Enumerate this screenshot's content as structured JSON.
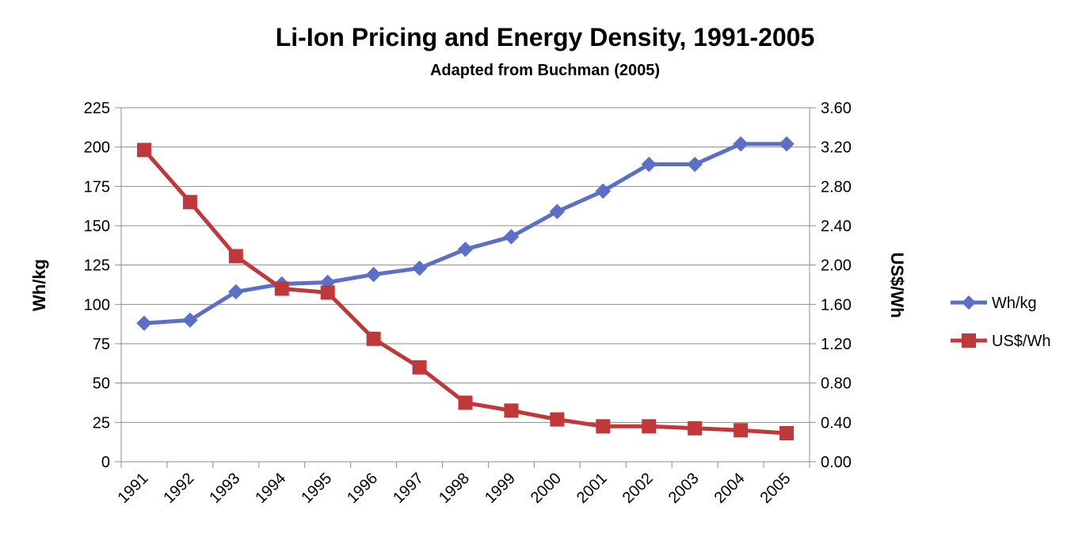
{
  "chart_data": {
    "type": "line",
    "title": "Li-Ion Pricing and Energy Density, 1991-2005",
    "subtitle": "Adapted from Buchman (2005)",
    "categories": [
      "1991",
      "1992",
      "1993",
      "1994",
      "1995",
      "1996",
      "1997",
      "1998",
      "1999",
      "2000",
      "2001",
      "2002",
      "2003",
      "2004",
      "2005"
    ],
    "y_left": {
      "label": "Wh/kg",
      "ylim": [
        0,
        225
      ],
      "ticks": [
        "0",
        "25",
        "50",
        "75",
        "100",
        "125",
        "150",
        "175",
        "200",
        "225"
      ]
    },
    "y_right": {
      "label": "US$/Wh",
      "ylim": [
        0,
        3.6
      ],
      "ticks": [
        "0.00",
        "0.40",
        "0.80",
        "1.20",
        "1.60",
        "2.00",
        "2.40",
        "2.80",
        "3.20",
        "3.60"
      ]
    },
    "grid": true,
    "legend_position": "right",
    "series": [
      {
        "name": "Wh/kg",
        "axis": "left",
        "marker": "diamond",
        "color": "#5b6fc8",
        "values": [
          88,
          90,
          108,
          113,
          114,
          119,
          123,
          135,
          143,
          159,
          172,
          189,
          189,
          202,
          202
        ]
      },
      {
        "name": "US$/Wh",
        "axis": "right",
        "marker": "square",
        "color": "#c0383a",
        "values": [
          3.17,
          2.64,
          2.09,
          1.76,
          1.72,
          1.25,
          0.96,
          0.6,
          0.52,
          0.43,
          0.36,
          0.36,
          0.34,
          0.32,
          0.29
        ]
      }
    ]
  }
}
